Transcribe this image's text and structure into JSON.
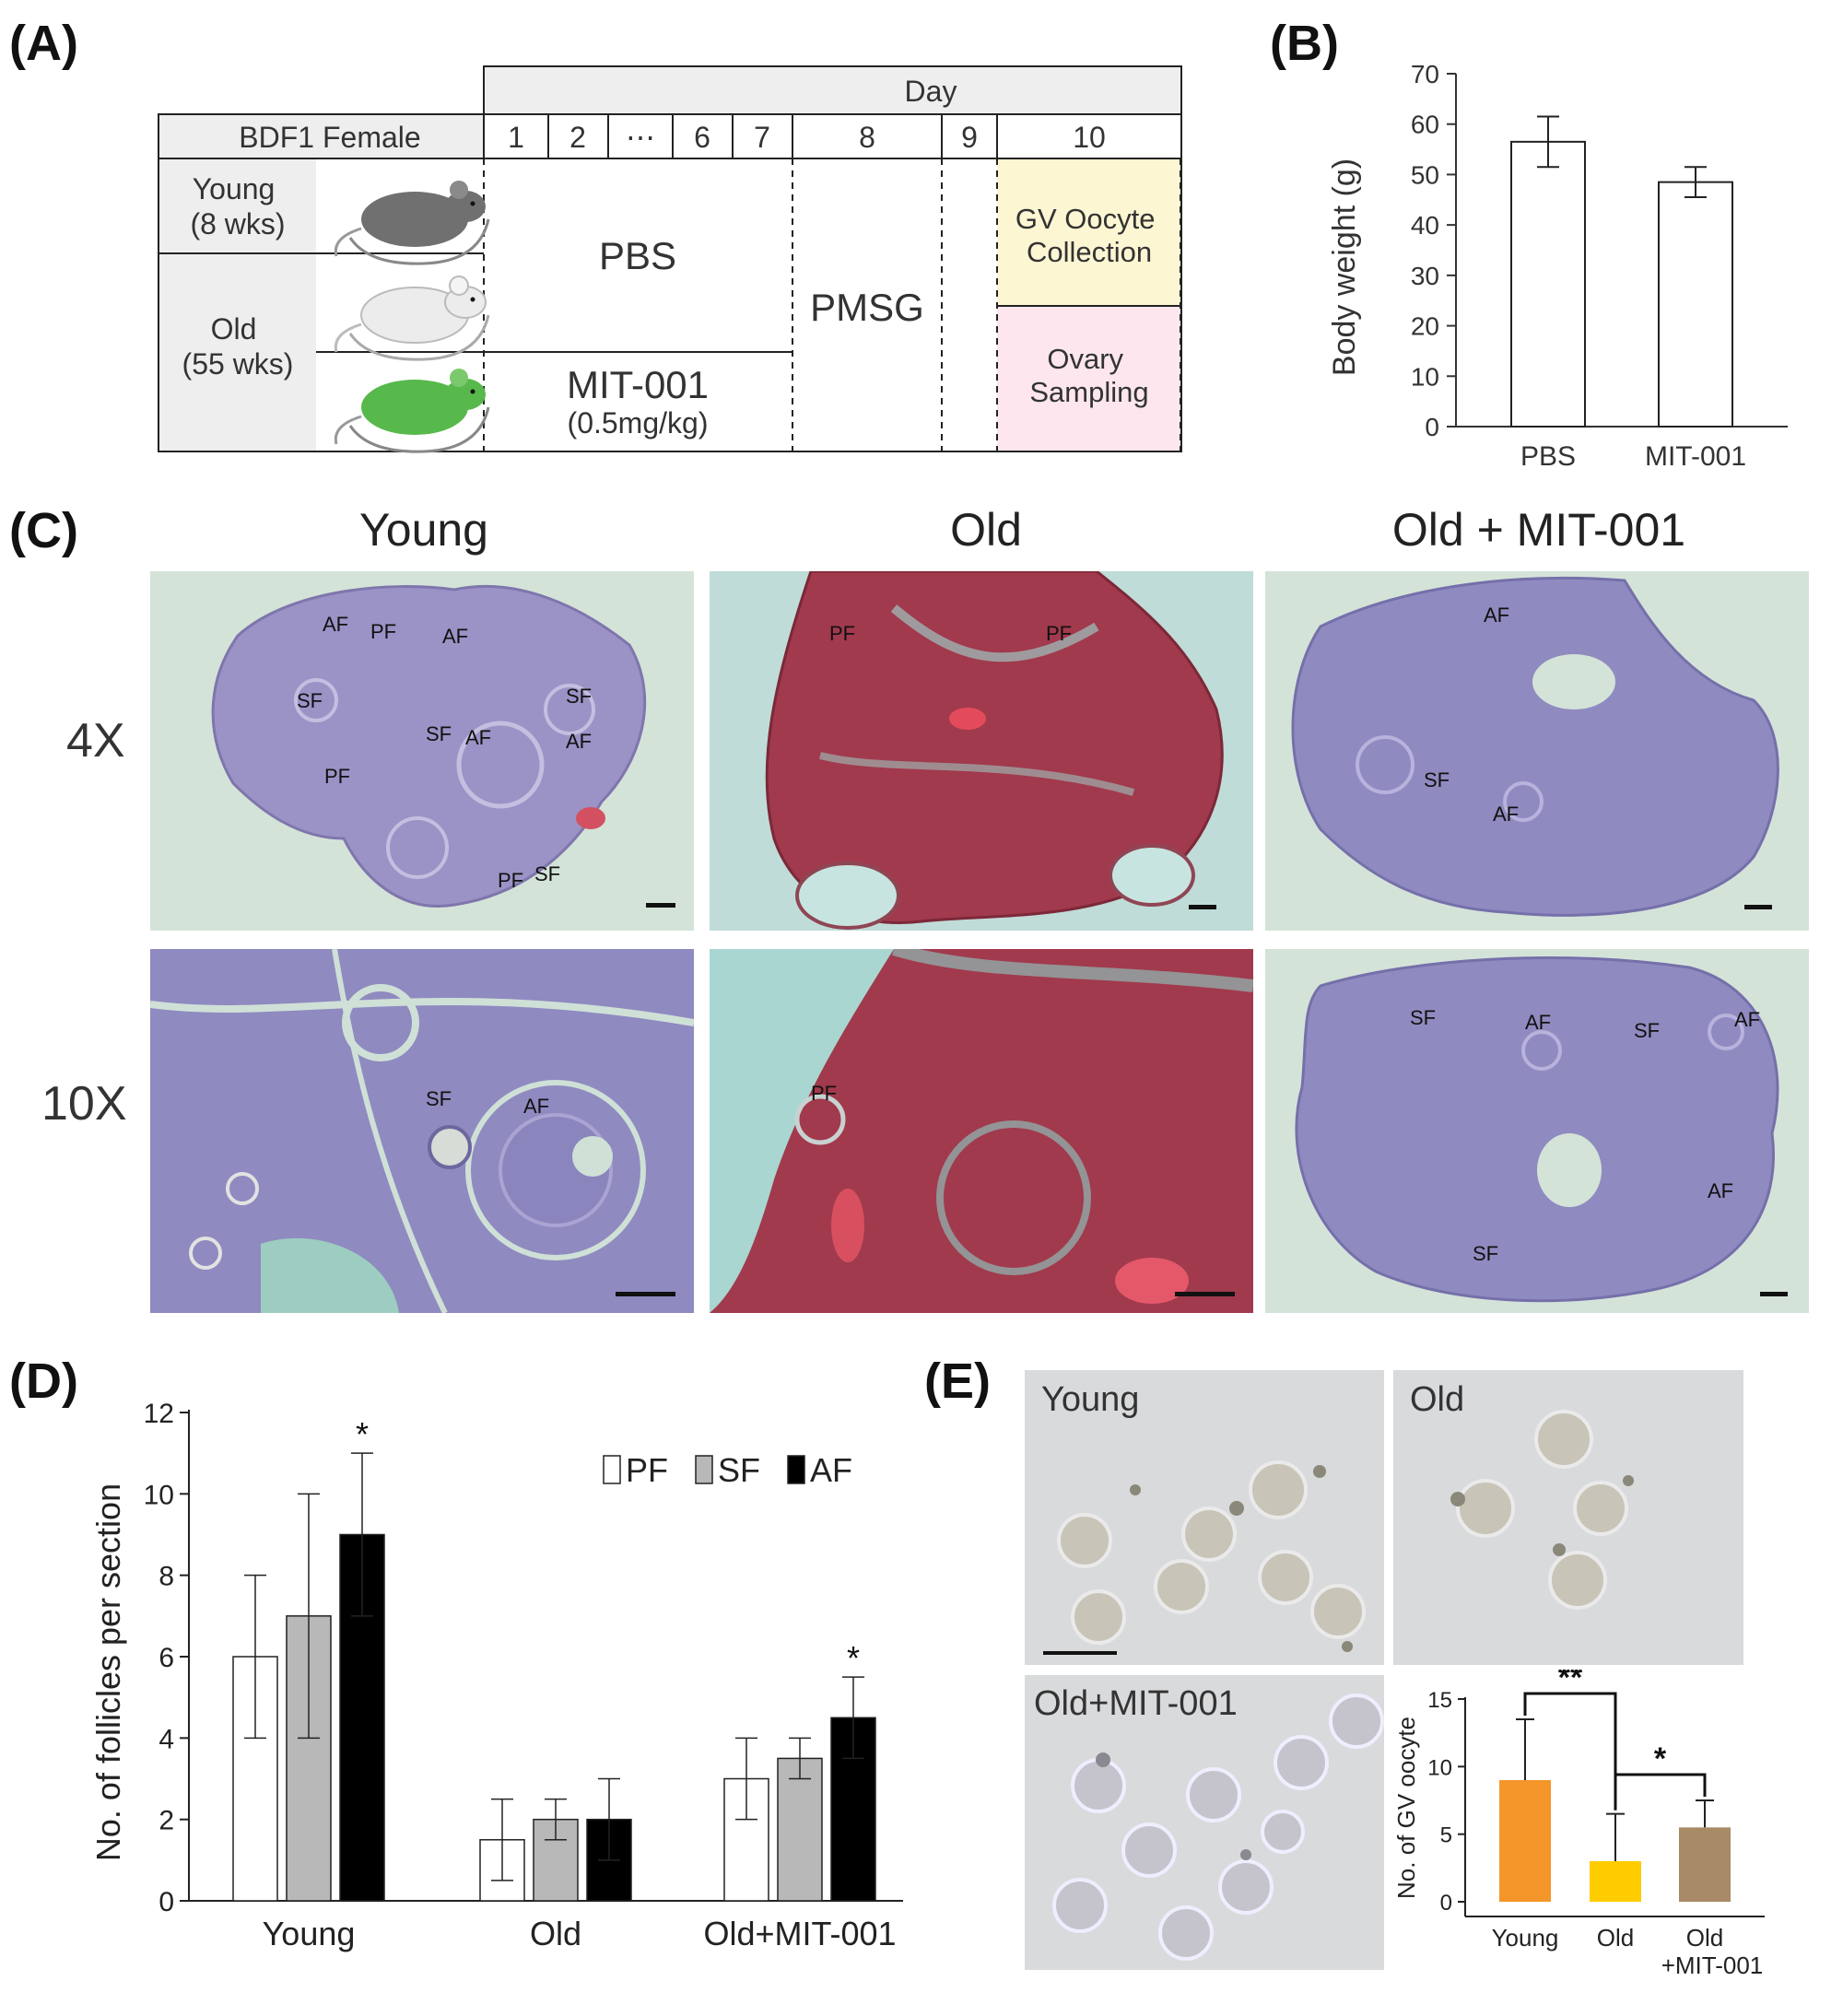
{
  "panels": {
    "a": "(A)",
    "b": "(B)",
    "c": "(C)",
    "d": "(D)",
    "e": "(E)"
  },
  "design": {
    "day_header": "Day",
    "strain": "BDF1 Female",
    "days": [
      "1",
      "2",
      "⋯",
      "6",
      "7",
      "8",
      "9",
      "10"
    ],
    "young_label": [
      "Young",
      "(8 wks)"
    ],
    "old_label": [
      "Old",
      "(55 wks)"
    ],
    "pbs": "PBS",
    "mit": "MIT-001",
    "dose": "(0.5mg/kg)",
    "pmsg": "PMSG",
    "gv_collection": [
      "GV Oocyte",
      "Collection"
    ],
    "ovary_sampling": [
      "Ovary",
      "Sampling"
    ],
    "colors": {
      "gv_box": "#fdf6d3",
      "ovary_box": "#fde6ee",
      "header": "#eeeeee",
      "mouse_young": "#707070",
      "mouse_old": "#e9e9e9",
      "mouse_mit": "#57b84b"
    }
  },
  "histology": {
    "columns": [
      "Young",
      "Old",
      "Old + MIT-001"
    ],
    "rows": [
      "4X",
      "10X"
    ],
    "labels": {
      "young_4x": [
        "AF",
        "PF",
        "AF",
        "SF",
        "SF",
        "SF",
        "AF",
        "AF",
        "PF",
        "PF",
        "SF"
      ],
      "old_4x": [
        "PF",
        "PF"
      ],
      "mit_4x": [
        "AF",
        "SF",
        "AF"
      ],
      "young_10x": [
        "SF",
        "AF"
      ],
      "old_10x": [
        "PF"
      ],
      "mit_10x": [
        "SF",
        "AF",
        "SF",
        "AF",
        "AF",
        "SF"
      ]
    },
    "colors": {
      "purple": "#8b83b8",
      "red": "#a33a4c",
      "background": "#cfe3dc"
    }
  },
  "oocytes": {
    "panels": [
      "Young",
      "Old",
      "Old+MIT-001"
    ]
  },
  "chart_data": [
    {
      "id": "B",
      "type": "bar",
      "categories": [
        "PBS",
        "MIT-001"
      ],
      "values": [
        56.5,
        48.5
      ],
      "errors": [
        5,
        3
      ],
      "ylabel": "Body weight (g)",
      "xlabel": "",
      "ylim": [
        0,
        70
      ],
      "yticks": [
        "0",
        "10",
        "20",
        "30",
        "40",
        "50",
        "60",
        "70"
      ],
      "bar_color": "#ffffff"
    },
    {
      "id": "D",
      "type": "bar",
      "categories": [
        "Young",
        "Old",
        "Old+MIT-001"
      ],
      "series": [
        {
          "name": "PF",
          "values": [
            6,
            1.5,
            3
          ],
          "errors": [
            2,
            1,
            1
          ],
          "color": "#ffffff"
        },
        {
          "name": "SF",
          "values": [
            7,
            2,
            3.5
          ],
          "errors": [
            3,
            0.5,
            0.5
          ],
          "color": "#b8b8b8"
        },
        {
          "name": "AF",
          "values": [
            9,
            2,
            4.5
          ],
          "errors": [
            2,
            1,
            1
          ],
          "color": "#000000"
        }
      ],
      "significance": [
        {
          "category": "Young",
          "series": "AF",
          "mark": "*"
        },
        {
          "category": "Old+MIT-001",
          "series": "AF",
          "mark": "*"
        }
      ],
      "ylabel": "No. of follicles per section",
      "xlabel": "",
      "ylim": [
        0,
        12
      ],
      "yticks": [
        "0",
        "2",
        "4",
        "6",
        "8",
        "10",
        "12"
      ],
      "legend": "top-right"
    },
    {
      "id": "E",
      "type": "bar",
      "categories": [
        "Young",
        "Old",
        "Old\n+MIT-001"
      ],
      "values": [
        9,
        3,
        5.5
      ],
      "errors": [
        4.5,
        3.5,
        2
      ],
      "colors": [
        "#f4962a",
        "#ffcc00",
        "#a98a67"
      ],
      "ylabel": "No. of GV oocyte",
      "xlabel": "",
      "ylim": [
        0,
        15
      ],
      "yticks": [
        "0",
        "5",
        "10",
        "15"
      ],
      "significance": [
        {
          "from": "Young",
          "to": "Old",
          "mark": "**"
        },
        {
          "from": "Old",
          "to": "Old\n+MIT-001",
          "mark": "*"
        }
      ]
    }
  ]
}
